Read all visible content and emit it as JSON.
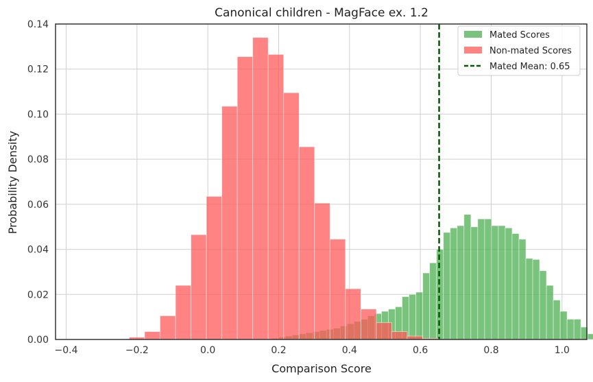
{
  "chart_data": {
    "type": "histogram",
    "title": "Canonical children - MagFace ex. 1.2",
    "xlabel": "Comparison Score",
    "ylabel": "Probability Density",
    "xlim": [
      -0.43,
      1.07
    ],
    "ylim": [
      0,
      0.14
    ],
    "xticks": [
      -0.4,
      -0.2,
      0.0,
      0.2,
      0.4,
      0.6,
      0.8,
      1.0
    ],
    "xtick_labels": [
      "−0.4",
      "−0.2",
      "0.0",
      "0.2",
      "0.4",
      "0.6",
      "0.8",
      "1.0"
    ],
    "yticks": [
      0,
      0.02,
      0.04,
      0.06,
      0.08,
      0.1,
      0.12,
      0.14
    ],
    "ytick_labels": [
      "0.00",
      "0.02",
      "0.04",
      "0.06",
      "0.08",
      "0.10",
      "0.12",
      "0.14"
    ],
    "grid": true,
    "legend_position": "top-right",
    "series": [
      {
        "name": "Mated Scores",
        "color": "#4caf50",
        "opacity": 0.75,
        "bin_start": 0.18,
        "bin_width": 0.0194,
        "values": [
          0.0005,
          0.001,
          0.0015,
          0.002,
          0.0025,
          0.003,
          0.0035,
          0.004,
          0.0045,
          0.005,
          0.006,
          0.007,
          0.008,
          0.009,
          0.0105,
          0.0115,
          0.0125,
          0.0135,
          0.0145,
          0.019,
          0.02,
          0.021,
          0.0295,
          0.034,
          0.04,
          0.0475,
          0.0495,
          0.0505,
          0.0555,
          0.05,
          0.0535,
          0.0535,
          0.0505,
          0.0505,
          0.0495,
          0.047,
          0.0445,
          0.036,
          0.0355,
          0.0305,
          0.024,
          0.0175,
          0.0125,
          0.009,
          0.009,
          0.0055,
          0.0025,
          0.0015,
          0.001
        ]
      },
      {
        "name": "Non-mated Scores",
        "color": "#ff5a5a",
        "opacity": 0.75,
        "bin_start": -0.222,
        "bin_width": 0.0436,
        "values": [
          0.001,
          0.0035,
          0.0105,
          0.024,
          0.0465,
          0.0635,
          0.1035,
          0.1255,
          0.134,
          0.1265,
          0.1095,
          0.0855,
          0.0605,
          0.0445,
          0.0225,
          0.0135,
          0.0075,
          0.0035,
          0.0015,
          0.0005
        ]
      }
    ],
    "vline": {
      "name": "Mated Mean: 0.65",
      "x": 0.653,
      "color": "#005a00",
      "style": "dashed"
    }
  }
}
